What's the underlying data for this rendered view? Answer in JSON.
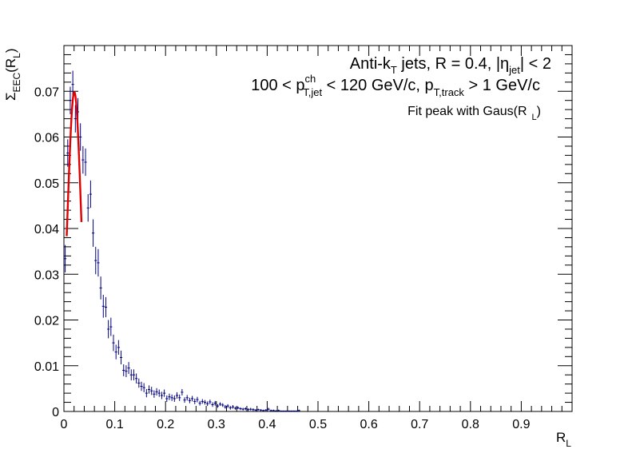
{
  "chart_data": {
    "type": "scatter",
    "title": "",
    "xlabel": "R",
    "xlabel_sub": "L",
    "ylabel": "Σ",
    "ylabel_sub": "EEC",
    "ylabel_suffix": "(R",
    "ylabel_suffix_sub": "L",
    "ylabel_close": ")",
    "xlim": [
      0,
      1
    ],
    "ylim": [
      0,
      0.08
    ],
    "xticks": [
      0,
      0.1,
      0.2,
      0.3,
      0.4,
      0.5,
      0.6,
      0.7,
      0.8,
      0.9
    ],
    "xtick_labels": [
      "0",
      "0.1",
      "0.2",
      "0.3",
      "0.4",
      "0.5",
      "0.6",
      "0.7",
      "0.8",
      "0.9"
    ],
    "yticks": [
      0,
      0.01,
      0.02,
      0.03,
      0.04,
      0.05,
      0.06,
      0.07
    ],
    "ytick_labels": [
      "0",
      "0.01",
      "0.02",
      "0.03",
      "0.04",
      "0.05",
      "0.06",
      "0.07"
    ],
    "grid": false,
    "colors": {
      "points": "#000080",
      "fit": "#e00000"
    },
    "annotations": {
      "line1": {
        "a": "Anti-k",
        "a_sub": "T",
        "b": " jets, R = 0.4, |η",
        "b_sub": "jet",
        "c": "| < 2"
      },
      "line2": {
        "a": "100 < p",
        "a_sup": "ch",
        "a_sub": "T,jet",
        "b": " < 120 GeV/c,  p",
        "b_sub": "T,track",
        "c": " > 1 GeV/c"
      },
      "line3": {
        "a": "Fit peak with Gaus(R",
        "a_sub": "L",
        "b": ")"
      }
    },
    "bin_width": 0.005,
    "series": [
      {
        "points": [
          [
            0.0025,
            0.0334,
            0.003
          ],
          [
            0.0075,
            0.0565,
            0.003
          ],
          [
            0.0125,
            0.068,
            0.003
          ],
          [
            0.0175,
            0.0715,
            0.003
          ],
          [
            0.0225,
            0.064,
            0.003
          ],
          [
            0.0275,
            0.0655,
            0.003
          ],
          [
            0.0325,
            0.06,
            0.003
          ],
          [
            0.0375,
            0.055,
            0.003
          ],
          [
            0.0425,
            0.0545,
            0.003
          ],
          [
            0.0475,
            0.0445,
            0.003
          ],
          [
            0.0525,
            0.0475,
            0.003
          ],
          [
            0.0575,
            0.039,
            0.003
          ],
          [
            0.0625,
            0.033,
            0.003
          ],
          [
            0.0675,
            0.0325,
            0.003
          ],
          [
            0.0725,
            0.027,
            0.0025
          ],
          [
            0.0775,
            0.023,
            0.0025
          ],
          [
            0.0825,
            0.0228,
            0.0022
          ],
          [
            0.0875,
            0.018,
            0.002
          ],
          [
            0.0925,
            0.0185,
            0.002
          ],
          [
            0.0975,
            0.015,
            0.0018
          ],
          [
            0.1025,
            0.013,
            0.0016
          ],
          [
            0.1075,
            0.014,
            0.0016
          ],
          [
            0.1125,
            0.0118,
            0.0015
          ],
          [
            0.1175,
            0.009,
            0.0013
          ],
          [
            0.1225,
            0.0088,
            0.0013
          ],
          [
            0.1275,
            0.0095,
            0.0013
          ],
          [
            0.1325,
            0.008,
            0.0012
          ],
          [
            0.1375,
            0.008,
            0.0012
          ],
          [
            0.1425,
            0.0072,
            0.0011
          ],
          [
            0.1475,
            0.0062,
            0.001
          ],
          [
            0.1525,
            0.0055,
            0.001
          ],
          [
            0.1575,
            0.0052,
            0.001
          ],
          [
            0.1625,
            0.004,
            0.0009
          ],
          [
            0.1675,
            0.0048,
            0.0009
          ],
          [
            0.1725,
            0.0045,
            0.0009
          ],
          [
            0.1775,
            0.0038,
            0.0008
          ],
          [
            0.1825,
            0.0043,
            0.0008
          ],
          [
            0.1875,
            0.004,
            0.0008
          ],
          [
            0.1925,
            0.0035,
            0.0008
          ],
          [
            0.1975,
            0.004,
            0.0008
          ],
          [
            0.2025,
            0.0028,
            0.0007
          ],
          [
            0.2075,
            0.0032,
            0.0007
          ],
          [
            0.2125,
            0.003,
            0.0007
          ],
          [
            0.2175,
            0.0028,
            0.0007
          ],
          [
            0.2225,
            0.0035,
            0.0007
          ],
          [
            0.2275,
            0.003,
            0.0007
          ],
          [
            0.2325,
            0.0042,
            0.0007
          ],
          [
            0.2375,
            0.0025,
            0.0006
          ],
          [
            0.2425,
            0.003,
            0.0006
          ],
          [
            0.2475,
            0.0024,
            0.0006
          ],
          [
            0.2525,
            0.0028,
            0.0006
          ],
          [
            0.2575,
            0.0022,
            0.0006
          ],
          [
            0.2625,
            0.0026,
            0.0006
          ],
          [
            0.2675,
            0.0018,
            0.0005
          ],
          [
            0.2725,
            0.0022,
            0.0005
          ],
          [
            0.2775,
            0.002,
            0.0005
          ],
          [
            0.2825,
            0.0017,
            0.0005
          ],
          [
            0.2875,
            0.0021,
            0.0005
          ],
          [
            0.2925,
            0.0015,
            0.0005
          ],
          [
            0.2975,
            0.0018,
            0.0005
          ],
          [
            0.3025,
            0.0012,
            0.0004
          ],
          [
            0.3075,
            0.0016,
            0.0004
          ],
          [
            0.3125,
            0.0014,
            0.0004
          ],
          [
            0.3175,
            0.001,
            0.0004
          ],
          [
            0.3225,
            0.0012,
            0.0004
          ],
          [
            0.3275,
            0.0008,
            0.0004
          ],
          [
            0.3325,
            0.001,
            0.0004
          ],
          [
            0.3375,
            0.0007,
            0.0003
          ],
          [
            0.3425,
            0.0008,
            0.0003
          ],
          [
            0.3475,
            0.0006,
            0.0003
          ],
          [
            0.3525,
            0.0005,
            0.0003
          ],
          [
            0.3575,
            0.0006,
            0.0003
          ],
          [
            0.3625,
            0.0004,
            0.0003
          ],
          [
            0.3675,
            0.0005,
            0.0003
          ],
          [
            0.3725,
            0.0004,
            0.0003
          ],
          [
            0.3775,
            0.0003,
            0.0002
          ],
          [
            0.3825,
            0.0004,
            0.0002
          ],
          [
            0.3875,
            0.0003,
            0.0002
          ],
          [
            0.3925,
            0.0002,
            0.0002
          ],
          [
            0.3975,
            0.0003,
            0.0002
          ],
          [
            0.4025,
            0.0005,
            0.0003
          ],
          [
            0.4075,
            0.0002,
            0.0002
          ],
          [
            0.4125,
            0.0002,
            0.0002
          ],
          [
            0.4175,
            0.0001,
            0.0002
          ],
          [
            0.4225,
            0.0002,
            0.0002
          ],
          [
            0.4275,
            0.0001,
            0.0001
          ],
          [
            0.4325,
            0.0001,
            0.0001
          ],
          [
            0.4375,
            0.0001,
            0.0001
          ],
          [
            0.4425,
            0.0001,
            0.0001
          ],
          [
            0.4475,
            0.0001,
            0.0001
          ],
          [
            0.4525,
            0.0001,
            0.0001
          ],
          [
            0.4575,
            0.0001,
            0.0001
          ],
          [
            0.4625,
            0.0002,
            0.0002
          ]
        ]
      }
    ],
    "fit": {
      "function": "gaus",
      "amplitude": 0.0698,
      "mean": 0.0205,
      "sigma": 0.0137,
      "x_range": [
        0.0055,
        0.0345
      ]
    }
  }
}
